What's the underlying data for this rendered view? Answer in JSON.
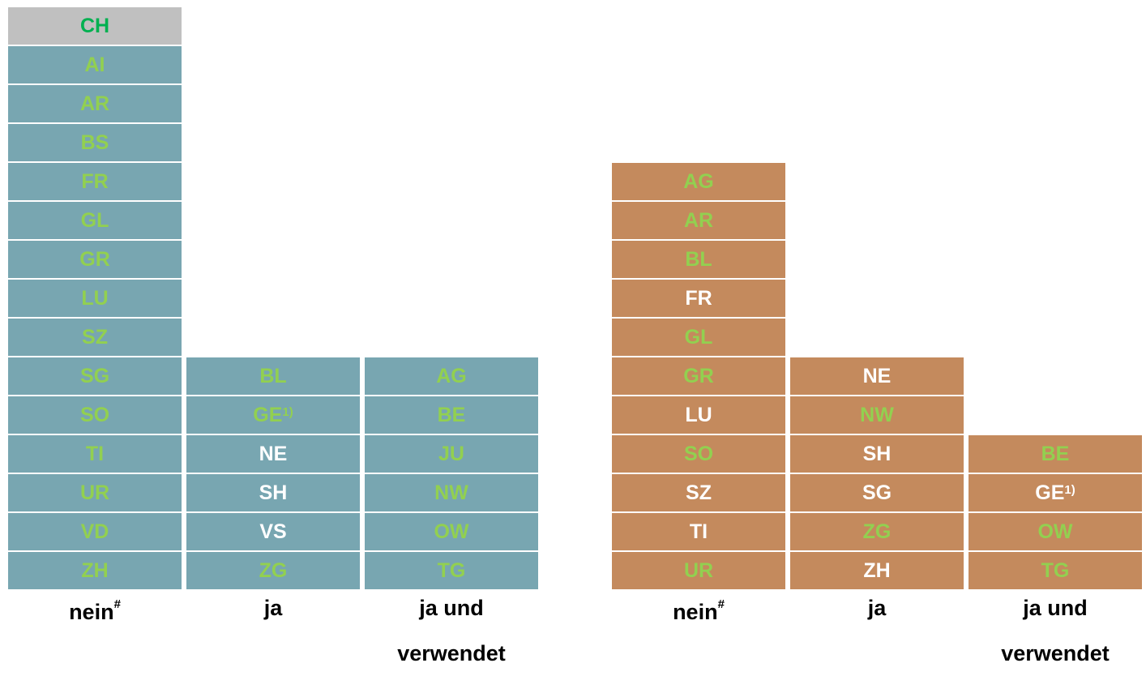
{
  "groups": [
    {
      "fill": "#78a6b1",
      "columns": [
        {
          "label": {
            "lines": [
              "nein"
            ],
            "sup": "#"
          },
          "cells": [
            {
              "text": "CH",
              "color": "#00b050",
              "fill": "#c0c0c0"
            },
            {
              "text": "AI",
              "color": "#92d050"
            },
            {
              "text": "AR",
              "color": "#92d050"
            },
            {
              "text": "BS",
              "color": "#92d050"
            },
            {
              "text": "FR",
              "color": "#92d050"
            },
            {
              "text": "GL",
              "color": "#92d050"
            },
            {
              "text": "GR",
              "color": "#92d050"
            },
            {
              "text": "LU",
              "color": "#92d050"
            },
            {
              "text": "SZ",
              "color": "#92d050"
            },
            {
              "text": "SG",
              "color": "#92d050"
            },
            {
              "text": "SO",
              "color": "#92d050"
            },
            {
              "text": "TI",
              "color": "#92d050"
            },
            {
              "text": "UR",
              "color": "#92d050"
            },
            {
              "text": "VD",
              "color": "#92d050"
            },
            {
              "text": "ZH",
              "color": "#92d050"
            }
          ]
        },
        {
          "label": {
            "lines": [
              "ja"
            ]
          },
          "cells": [
            {
              "text": "BL",
              "color": "#92d050"
            },
            {
              "text": "GE",
              "sup": "1)",
              "color": "#92d050"
            },
            {
              "text": "NE",
              "color": "#ffffff"
            },
            {
              "text": "SH",
              "color": "#ffffff"
            },
            {
              "text": "VS",
              "color": "#ffffff"
            },
            {
              "text": "ZG",
              "color": "#92d050"
            }
          ]
        },
        {
          "label": {
            "lines": [
              "ja und",
              "verwendet"
            ]
          },
          "cells": [
            {
              "text": "AG",
              "color": "#92d050"
            },
            {
              "text": "BE",
              "color": "#92d050"
            },
            {
              "text": "JU",
              "color": "#92d050"
            },
            {
              "text": "NW",
              "color": "#92d050"
            },
            {
              "text": "OW",
              "color": "#92d050"
            },
            {
              "text": "TG",
              "color": "#92d050"
            }
          ]
        }
      ]
    },
    {
      "fill": "#c48a5d",
      "columns": [
        {
          "label": {
            "lines": [
              "nein"
            ],
            "sup": "#"
          },
          "cells": [
            {
              "text": "AG",
              "color": "#92d050"
            },
            {
              "text": "AR",
              "color": "#92d050"
            },
            {
              "text": "BL",
              "color": "#92d050"
            },
            {
              "text": "FR",
              "color": "#ffffff"
            },
            {
              "text": "GL",
              "color": "#92d050"
            },
            {
              "text": "GR",
              "color": "#92d050"
            },
            {
              "text": "LU",
              "color": "#ffffff"
            },
            {
              "text": "SO",
              "color": "#92d050"
            },
            {
              "text": "SZ",
              "color": "#ffffff"
            },
            {
              "text": "TI",
              "color": "#ffffff"
            },
            {
              "text": "UR",
              "color": "#92d050"
            }
          ]
        },
        {
          "label": {
            "lines": [
              "ja"
            ]
          },
          "cells": [
            {
              "text": "NE",
              "color": "#ffffff"
            },
            {
              "text": "NW",
              "color": "#92d050"
            },
            {
              "text": "SH",
              "color": "#ffffff"
            },
            {
              "text": "SG",
              "color": "#ffffff"
            },
            {
              "text": "ZG",
              "color": "#92d050"
            },
            {
              "text": "ZH",
              "color": "#ffffff"
            }
          ]
        },
        {
          "label": {
            "lines": [
              "ja und",
              "verwendet"
            ]
          },
          "cells": [
            {
              "text": "BE",
              "color": "#92d050"
            },
            {
              "text": "GE",
              "sup": "1)",
              "color": "#ffffff"
            },
            {
              "text": "OW",
              "color": "#92d050"
            },
            {
              "text": "TG",
              "color": "#92d050"
            }
          ]
        }
      ]
    }
  ]
}
